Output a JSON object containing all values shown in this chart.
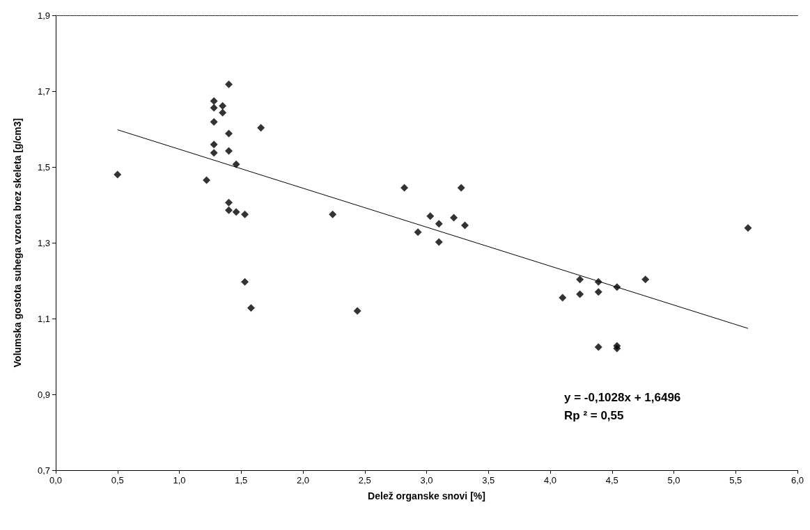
{
  "chart_data": {
    "type": "scatter",
    "xlabel": "Delež organske snovi [%]",
    "ylabel": "Volumska gostota suhega vzorca brez skeleta [g/cm3]",
    "xlim": [
      0,
      6
    ],
    "ylim": [
      0.7,
      1.9
    ],
    "xticks": [
      {
        "value": 0,
        "label": "0,0"
      },
      {
        "value": 0.5,
        "label": "0,5"
      },
      {
        "value": 1,
        "label": "1,0"
      },
      {
        "value": 1.5,
        "label": "1,5"
      },
      {
        "value": 2,
        "label": "2,0"
      },
      {
        "value": 2.5,
        "label": "2,5"
      },
      {
        "value": 3,
        "label": "3,0"
      },
      {
        "value": 3.5,
        "label": "3,5"
      },
      {
        "value": 4,
        "label": "4,0"
      },
      {
        "value": 4.5,
        "label": "4,5"
      },
      {
        "value": 5,
        "label": "5,0"
      },
      {
        "value": 5.5,
        "label": "5,5"
      },
      {
        "value": 6,
        "label": "6,0"
      }
    ],
    "yticks": [
      {
        "value": 0.7,
        "label": "0,7"
      },
      {
        "value": 0.9,
        "label": "0,9"
      },
      {
        "value": 1.1,
        "label": "1,1"
      },
      {
        "value": 1.3,
        "label": "1,3"
      },
      {
        "value": 1.5,
        "label": "1,5"
      },
      {
        "value": 1.7,
        "label": "1,7"
      },
      {
        "value": 1.9,
        "label": "1,9"
      }
    ],
    "grid": false,
    "marker": "diamond",
    "series": [
      {
        "color": "#000000",
        "x": [
          0.5,
          1.22,
          1.28,
          1.28,
          1.28,
          1.28,
          1.28,
          1.35,
          1.35,
          1.4,
          1.4,
          1.4,
          1.4,
          1.4,
          1.46,
          1.53,
          1.46,
          1.53,
          1.58,
          1.66,
          2.24,
          2.44,
          2.82,
          2.93,
          3.03,
          3.1,
          3.1,
          3.22,
          3.28,
          3.31,
          4.1,
          4.24,
          4.24,
          4.39,
          4.39,
          4.39,
          4.54,
          4.54,
          4.54,
          4.77,
          5.6
        ],
        "values": [
          1.48,
          1.465,
          1.674,
          1.656,
          1.619,
          1.559,
          1.537,
          1.661,
          1.643,
          1.718,
          1.588,
          1.542,
          1.406,
          1.386,
          1.381,
          1.375,
          1.507,
          1.197,
          1.128,
          1.603,
          1.375,
          1.12,
          1.445,
          1.328,
          1.37,
          1.35,
          1.302,
          1.366,
          1.445,
          1.346,
          1.155,
          1.203,
          1.164,
          1.197,
          1.17,
          1.025,
          1.183,
          1.028,
          1.021,
          1.203,
          1.339
        ]
      },
      {
        "type": "line",
        "color": "#000000",
        "marker": "none",
        "line_style": "solid",
        "x": [
          0.5,
          5.6
        ],
        "values": [
          1.598,
          1.074
        ]
      }
    ],
    "annotations": [
      "y = -0,1028x + 1,6496",
      "Rp ² = 0,55"
    ]
  }
}
